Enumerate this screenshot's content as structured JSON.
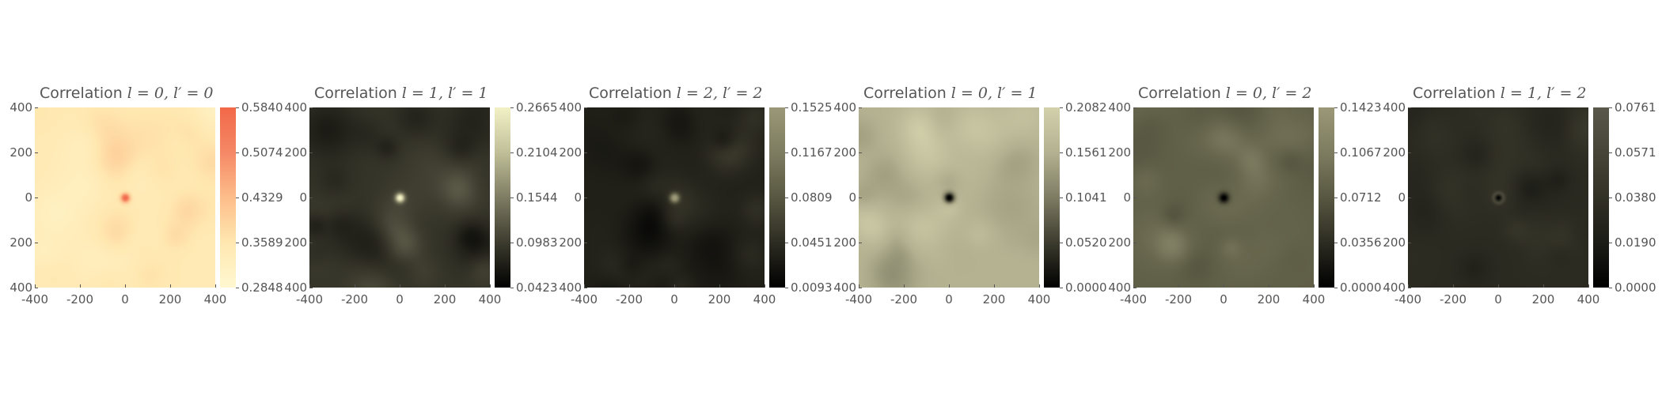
{
  "chart_data": [
    {
      "type": "heatmap",
      "title_prefix": "Correlation",
      "title_math": "l = 0, l′ = 0",
      "xticks": [
        "-400",
        "-200",
        "0",
        "200",
        "400"
      ],
      "yticks": [
        "400",
        "200",
        "0",
        "200",
        "400"
      ],
      "xlim": [
        -400,
        400
      ],
      "ylim": [
        -400,
        400
      ],
      "colorbar_ticks": [
        "0.5840",
        "0.5074",
        "0.4329",
        "0.3589",
        "0.2848"
      ],
      "colorbar_range": [
        0.2848,
        0.584
      ],
      "colormap": [
        "#fff8d0",
        "#ffe7b0",
        "#fdbd8a",
        "#f58866",
        "#f16848"
      ],
      "peak": "bright",
      "background_level": 0.22
    },
    {
      "type": "heatmap",
      "title_prefix": "Correlation",
      "title_math": "l = 1, l′ = 1",
      "xticks": [
        "-400",
        "-200",
        "0",
        "200",
        "400"
      ],
      "yticks": [
        "400",
        "200",
        "0",
        "200",
        "400"
      ],
      "xlim": [
        -400,
        400
      ],
      "ylim": [
        -400,
        400
      ],
      "colorbar_ticks": [
        "0.2665",
        "0.2104",
        "0.1544",
        "0.0983",
        "0.0423"
      ],
      "colorbar_range": [
        0.0423,
        0.2665
      ],
      "colormap": [
        "#000000",
        "#3c3b2e",
        "#7e7c63",
        "#c0bf98",
        "#f2f1c6"
      ],
      "peak": "bright",
      "background_level": 0.22
    },
    {
      "type": "heatmap",
      "title_prefix": "Correlation",
      "title_math": "l = 2, l′ = 2",
      "xticks": [
        "-400",
        "-200",
        "0",
        "200",
        "400"
      ],
      "yticks": [
        "400",
        "200",
        "0",
        "200",
        "400"
      ],
      "xlim": [
        -400,
        400
      ],
      "ylim": [
        -400,
        400
      ],
      "colorbar_ticks": [
        "0.1525",
        "0.1167",
        "0.0809",
        "0.0451",
        "0.0093"
      ],
      "colorbar_range": [
        0.0093,
        0.1525
      ],
      "colormap": [
        "#000000",
        "#2d2c22",
        "#585741",
        "#7e7c60",
        "#9a9877"
      ],
      "peak": "bright",
      "background_level": 0.18
    },
    {
      "type": "heatmap",
      "title_prefix": "Correlation",
      "title_math": "l = 0, l′ = 1",
      "xticks": [
        "-400",
        "-200",
        "0",
        "200",
        "400"
      ],
      "yticks": [
        "400",
        "200",
        "0",
        "200",
        "400"
      ],
      "xlim": [
        -400,
        400
      ],
      "ylim": [
        -400,
        400
      ],
      "colorbar_ticks": [
        "0.2082",
        "0.1561",
        "0.1041",
        "0.0520",
        "0.0000"
      ],
      "colorbar_range": [
        0.0,
        0.2082
      ],
      "colormap": [
        "#000000",
        "#3c3b2e",
        "#7e7c63",
        "#b3b190",
        "#d3d1ac"
      ],
      "peak": "dark",
      "background_level": 0.76
    },
    {
      "type": "heatmap",
      "title_prefix": "Correlation",
      "title_math": "l = 0, l′ = 2",
      "xticks": [
        "-400",
        "-200",
        "0",
        "200",
        "400"
      ],
      "yticks": [
        "400",
        "200",
        "0",
        "200",
        "400"
      ],
      "xlim": [
        -400,
        400
      ],
      "ylim": [
        -400,
        400
      ],
      "colorbar_ticks": [
        "0.1423",
        "0.1067",
        "0.0712",
        "0.0356",
        "0.0000"
      ],
      "colorbar_range": [
        0.0,
        0.1423
      ],
      "colormap": [
        "#000000",
        "#2d2c22",
        "#585741",
        "#7e7c60",
        "#9a9877"
      ],
      "peak": "dark",
      "background_level": 0.55
    },
    {
      "type": "heatmap",
      "title_prefix": "Correlation",
      "title_math": "l = 1, l′ = 2",
      "xticks": [
        "-400",
        "-200",
        "0",
        "200",
        "400"
      ],
      "yticks": [
        "400",
        "200",
        "0",
        "200",
        "400"
      ],
      "xlim": [
        -400,
        400
      ],
      "ylim": [
        -400,
        400
      ],
      "colorbar_ticks": [
        "0.0761",
        "0.0571",
        "0.0380",
        "0.0190",
        "0.0000"
      ],
      "colorbar_range": [
        0.0,
        0.0761
      ],
      "colormap": [
        "#000000",
        "#1c1c17",
        "#323126",
        "#464538",
        "#59584a"
      ],
      "peak": "ring",
      "background_level": 0.42
    }
  ]
}
